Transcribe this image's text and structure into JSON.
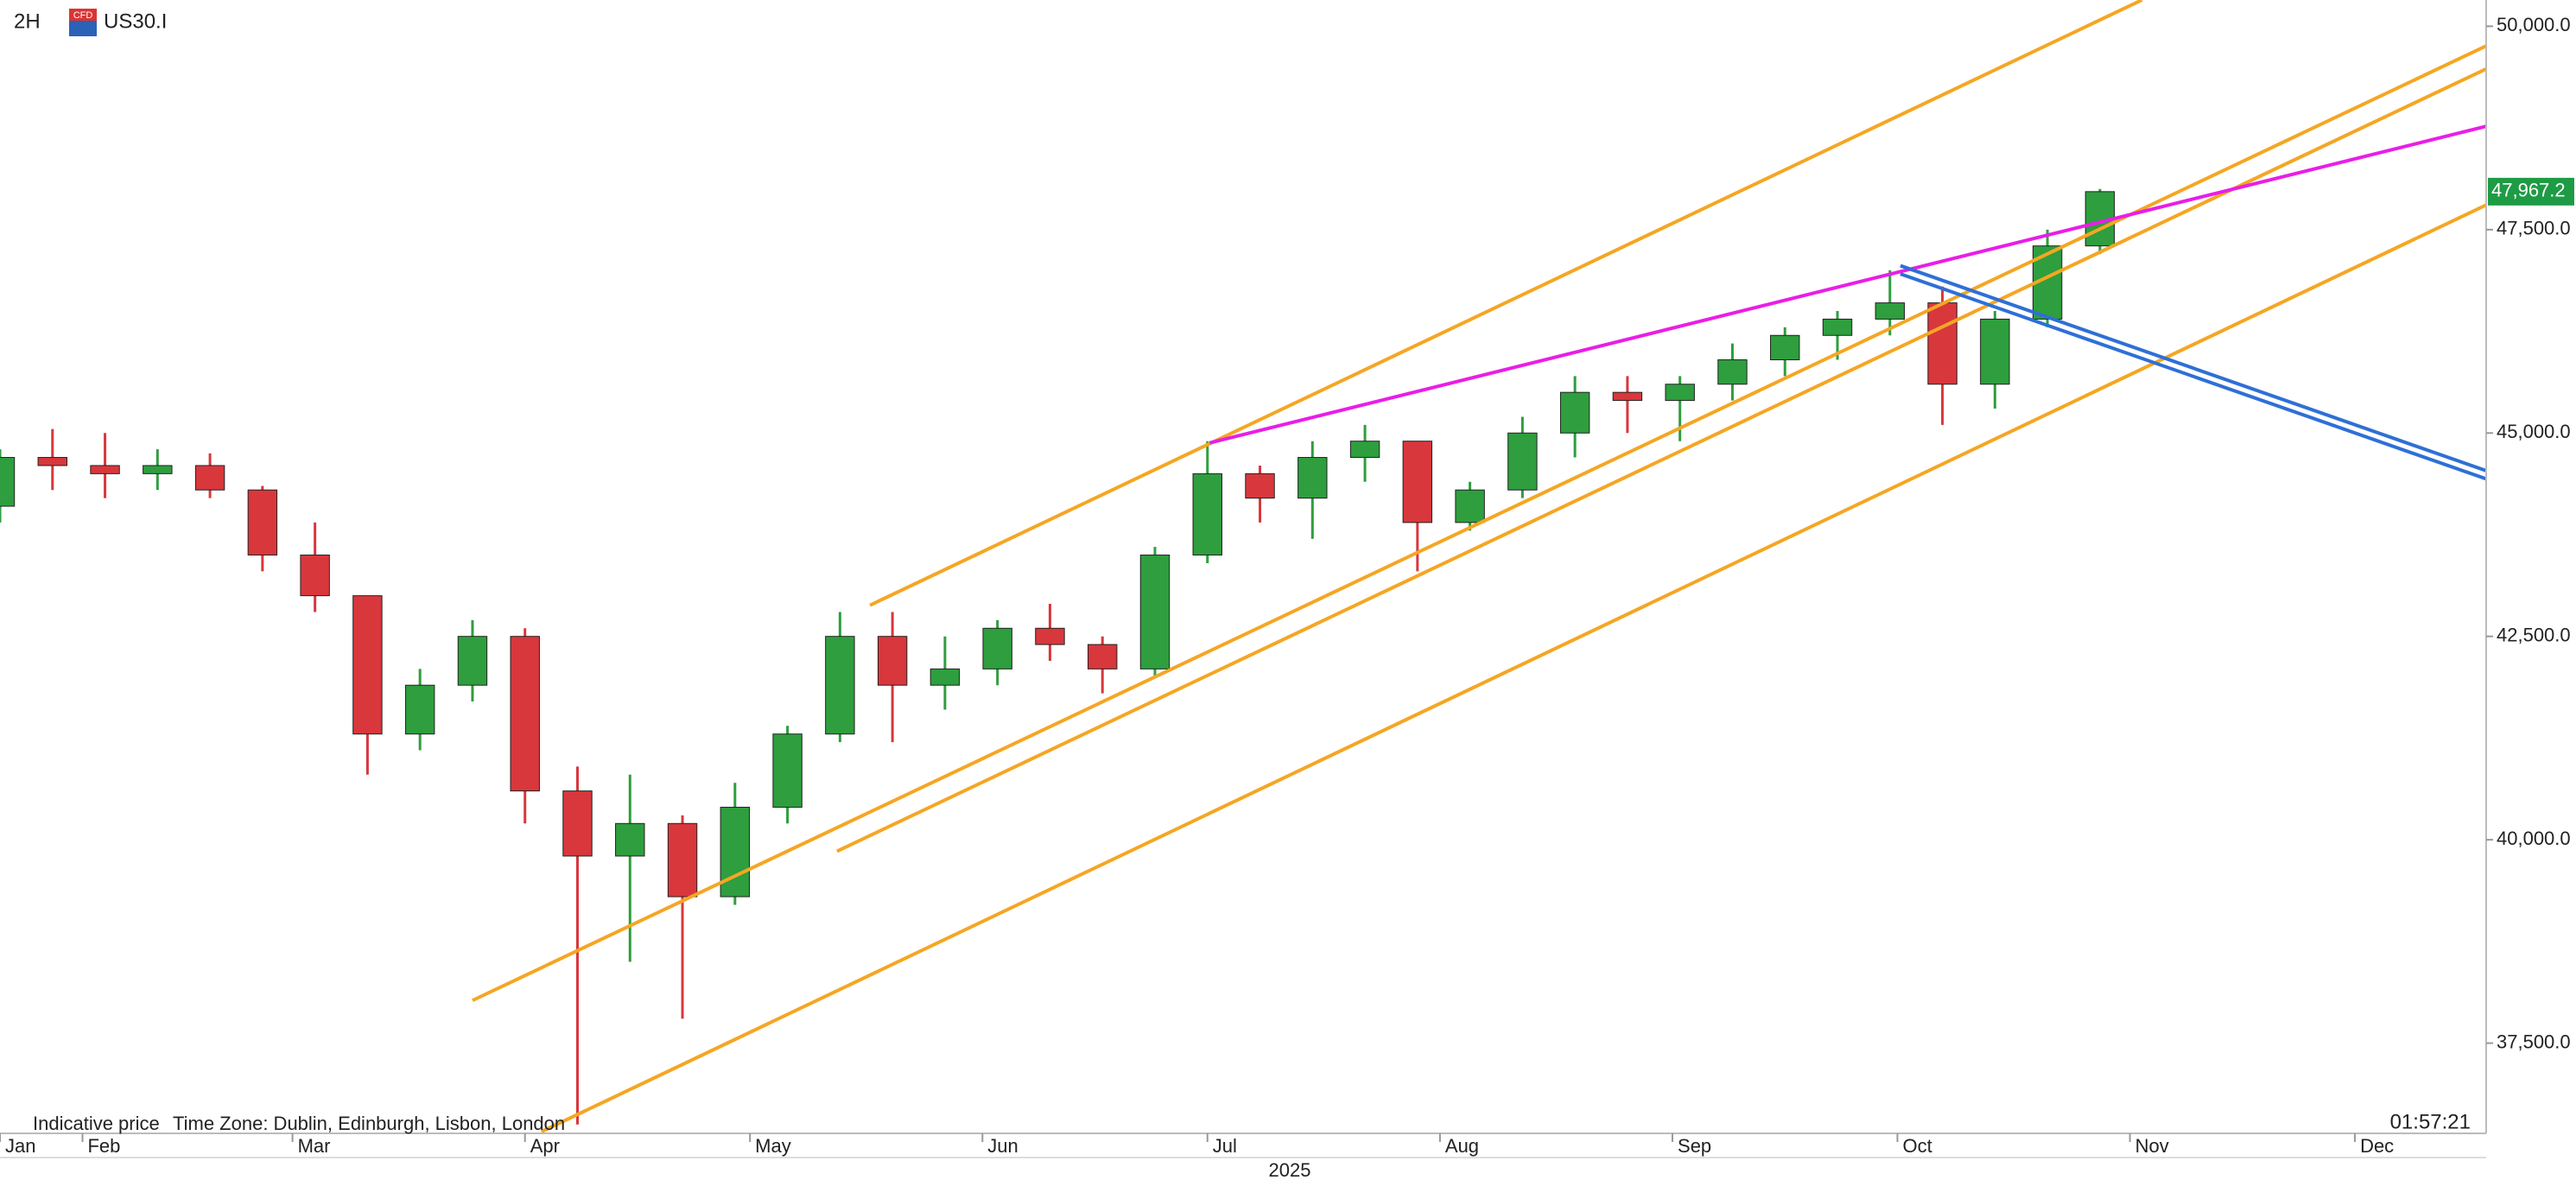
{
  "chart_data": {
    "type": "candlestick",
    "timeframe": "2H",
    "icon_text": "CFD",
    "symbol": "US30.I",
    "footer_note": "Indicative price",
    "timezone": "Time Zone: Dublin, Edinburgh, Lisbon, London",
    "clock": "01:57:21",
    "x_axis_label": "2025",
    "up_color": "#2e9e3e",
    "down_color": "#d8373c",
    "x": [
      21,
      28,
      35,
      42,
      49,
      56,
      63,
      70,
      77,
      84,
      91,
      98,
      105,
      112,
      119,
      126,
      133,
      140,
      147,
      154,
      161,
      168,
      175,
      182,
      189,
      196,
      203,
      210,
      217,
      224,
      231,
      238,
      245,
      252,
      259,
      266,
      273,
      280,
      287,
      294,
      301
    ],
    "open": [
      44100,
      44700,
      44600,
      44500,
      44600,
      44300,
      43500,
      43000,
      41300,
      41900,
      42500,
      40600,
      39800,
      40200,
      39300,
      40400,
      41300,
      42500,
      41900,
      42100,
      42600,
      42400,
      42100,
      43500,
      44500,
      44200,
      44700,
      44900,
      43900,
      44300,
      45000,
      45500,
      45400,
      45600,
      45900,
      46200,
      46400,
      46600,
      45600,
      46400,
      47300
    ],
    "high": [
      44800,
      45050,
      45000,
      44800,
      44750,
      44350,
      43900,
      43000,
      42100,
      42700,
      42600,
      40900,
      40800,
      40300,
      40700,
      41400,
      42800,
      42800,
      42500,
      42700,
      42900,
      42500,
      43600,
      44900,
      44600,
      44900,
      45100,
      44900,
      44400,
      45200,
      45700,
      45700,
      45700,
      46100,
      46300,
      46500,
      47000,
      46800,
      46500,
      47500,
      48000
    ],
    "low": [
      43900,
      44300,
      44200,
      44300,
      44200,
      43300,
      42800,
      40800,
      41100,
      41700,
      40200,
      36500,
      38500,
      37800,
      39200,
      40200,
      41200,
      41200,
      41600,
      41900,
      42200,
      41800,
      42000,
      43400,
      43900,
      43700,
      44400,
      43300,
      43800,
      44200,
      44700,
      45000,
      44900,
      45400,
      45700,
      45900,
      46200,
      45100,
      45300,
      46300,
      47200
    ],
    "close": [
      44700,
      44600,
      44500,
      44600,
      44300,
      43500,
      43000,
      41300,
      41900,
      42500,
      40600,
      39800,
      40200,
      39300,
      40400,
      41300,
      42500,
      41900,
      42100,
      42600,
      42400,
      42100,
      43500,
      44500,
      44200,
      44700,
      44900,
      43900,
      44300,
      45000,
      45500,
      45400,
      45600,
      45900,
      46200,
      46400,
      46600,
      45600,
      46400,
      47300,
      47967.2
    ],
    "last_price": {
      "value": 47967.2,
      "label": "47,967.2"
    },
    "last_price_color": "#1e9b45",
    "xlim": [
      21,
      352.5
    ],
    "xticks": [
      {
        "value": 21,
        "label": "Jan"
      },
      {
        "value": 32,
        "label": "Feb"
      },
      {
        "value": 60,
        "label": "Mar"
      },
      {
        "value": 91,
        "label": "Apr"
      },
      {
        "value": 121,
        "label": "May"
      },
      {
        "value": 152,
        "label": "Jun"
      },
      {
        "value": 182,
        "label": "Jul"
      },
      {
        "value": 213,
        "label": "Aug"
      },
      {
        "value": 244,
        "label": "Sep"
      },
      {
        "value": 274,
        "label": "Oct"
      },
      {
        "value": 305,
        "label": "Nov"
      },
      {
        "value": 335,
        "label": "Dec"
      }
    ],
    "ylim": [
      36391,
      50323
    ],
    "yticks": [
      {
        "value": 37500,
        "label": "37,500.0"
      },
      {
        "value": 40000,
        "label": "40,000.0"
      },
      {
        "value": 42500,
        "label": "42,500.0"
      },
      {
        "value": 45000,
        "label": "45,000.0"
      },
      {
        "value": 47500,
        "label": "47,500.0"
      },
      {
        "value": 50000,
        "label": "50,000.0"
      }
    ],
    "trendlines": [
      {
        "color": "#f5a623",
        "points": [
          [
            137,
            42883
          ],
          [
            306.6,
            50323
          ]
        ]
      },
      {
        "color": "#f5a623",
        "points": [
          [
            84,
            38025
          ],
          [
            352.5,
            49758
          ]
        ]
      },
      {
        "color": "#f5a623",
        "points": [
          [
            132.6,
            39859
          ],
          [
            352.5,
            49476
          ]
        ]
      },
      {
        "color": "#f5a623",
        "points": [
          [
            93.2,
            36412
          ],
          [
            352.5,
            47803
          ]
        ]
      },
      {
        "color": "#e91ee6",
        "points": [
          [
            182.3,
            44879
          ],
          [
            352.5,
            48770
          ]
        ]
      },
      {
        "color": "#2f6fd6",
        "points": [
          [
            274.4,
            47057
          ],
          [
            352.5,
            44537
          ]
        ]
      },
      {
        "color": "#2f6fd6",
        "points": [
          [
            274.4,
            46956
          ],
          [
            352.5,
            44436
          ]
        ]
      }
    ]
  }
}
